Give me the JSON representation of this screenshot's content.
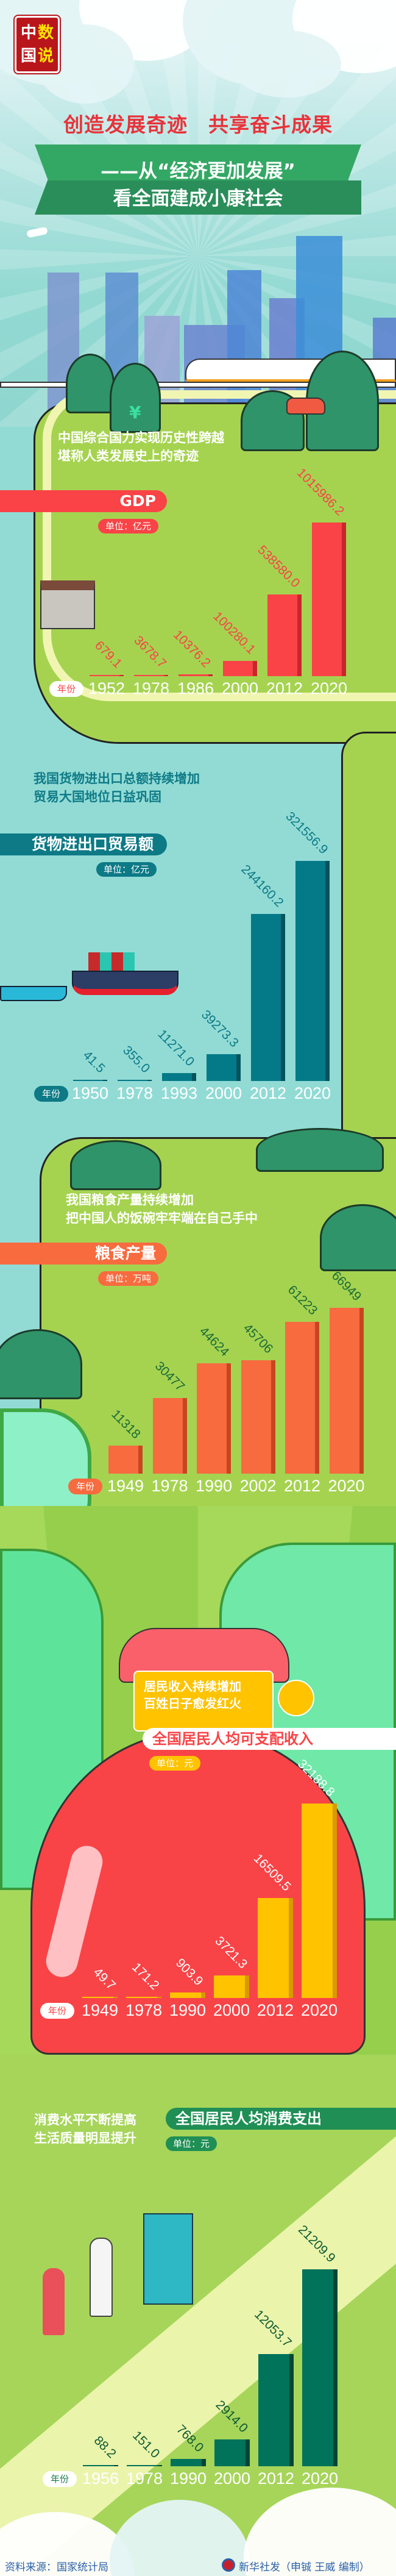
{
  "logo": {
    "chars": [
      "中",
      "数",
      "国",
      "说"
    ]
  },
  "header": {
    "title": "创造发展奇迹　共享奋斗成果",
    "subtitle_line1": "——从“经济更加发展”",
    "subtitle_line2": "看全面建成小康社会"
  },
  "sections": [
    {
      "intro": [
        "中国综合国力实现历史性跨越",
        "堪称人类发展史上的奇迹"
      ],
      "banner": "GDP",
      "unit": "单位：亿元",
      "year_label": "年份"
    },
    {
      "intro": [
        "我国货物进出口总额持续增加",
        "贸易大国地位日益巩固"
      ],
      "banner": "货物进出口贸易额",
      "unit": "单位：亿元",
      "year_label": "年份"
    },
    {
      "intro": [
        "我国粮食产量持续增加",
        "把中国人的饭碗牢牢端在自己手中"
      ],
      "banner": "粮食产量",
      "unit": "单位：万吨",
      "year_label": "年份"
    },
    {
      "intro": [
        "居民收入持续增加",
        "百姓日子愈发红火"
      ],
      "banner": "全国居民人均可支配收入",
      "unit": "单位：元",
      "year_label": "年份"
    },
    {
      "intro": [
        "消费水平不断提高",
        "生活质量明显提升"
      ],
      "banner": "全国居民人均消费支出",
      "unit": "单位：元",
      "year_label": "年份"
    }
  ],
  "colors": {
    "gdp": "#f94346",
    "trade": "#047a88",
    "grain": "#f76b3f",
    "income": "#ffc300",
    "consumption": "#00735a"
  },
  "chart_data": [
    {
      "type": "bar",
      "title": "GDP",
      "unit": "亿元",
      "categories": [
        "1952",
        "1978",
        "1986",
        "2000",
        "2012",
        "2020"
      ],
      "values": [
        679.1,
        3678.7,
        10376.2,
        100280.1,
        538580.0,
        1015986.2
      ],
      "value_labels": [
        "679.1",
        "3678.7",
        "10376.2",
        "100280.1",
        "538580.0",
        "1015986.2"
      ]
    },
    {
      "type": "bar",
      "title": "货物进出口贸易额",
      "unit": "亿元",
      "categories": [
        "1950",
        "1978",
        "1993",
        "2000",
        "2012",
        "2020"
      ],
      "values": [
        41.5,
        355.0,
        11271.0,
        39273.3,
        244160.2,
        321556.9
      ],
      "value_labels": [
        "41.5",
        "355.0",
        "11271.0",
        "39273.3",
        "244160.2",
        "321556.9"
      ]
    },
    {
      "type": "bar",
      "title": "粮食产量",
      "unit": "万吨",
      "categories": [
        "1949",
        "1978",
        "1990",
        "2002",
        "2012",
        "2020"
      ],
      "values": [
        11318,
        30477,
        44624,
        45706,
        61223,
        66949
      ],
      "value_labels": [
        "11318",
        "30477",
        "44624",
        "45706",
        "61223",
        "66949"
      ]
    },
    {
      "type": "bar",
      "title": "全国居民人均可支配收入",
      "unit": "元",
      "categories": [
        "1949",
        "1978",
        "1990",
        "2000",
        "2012",
        "2020"
      ],
      "values": [
        49.7,
        171.2,
        903.9,
        3721.3,
        16509.5,
        32188.8
      ],
      "value_labels": [
        "49.7",
        "171.2",
        "903.9",
        "3721.3",
        "16509.5",
        "32188.8"
      ]
    },
    {
      "type": "bar",
      "title": "全国居民人均消费支出",
      "unit": "元",
      "categories": [
        "1956",
        "1978",
        "1990",
        "2000",
        "2012",
        "2020"
      ],
      "values": [
        88.2,
        151.0,
        768.0,
        2914.0,
        12053.7,
        21209.9
      ],
      "value_labels": [
        "88.2",
        "151.0",
        "768.0",
        "2914.0",
        "12053.7",
        "21209.9"
      ]
    }
  ],
  "footer": {
    "source": "资料来源：国家统计局",
    "credit": "新华社发（申铖 王威 编制）"
  }
}
